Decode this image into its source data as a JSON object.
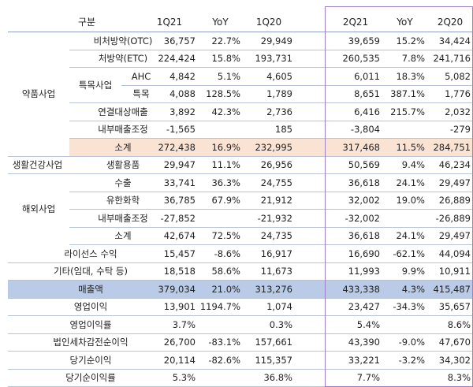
{
  "columns": [
    "구분",
    "1Q21",
    "YoY",
    "1Q20",
    "2Q21",
    "YoY",
    "2Q20"
  ],
  "groups": {
    "pharma": "약품사업",
    "special": "특목사업",
    "consumer": "생활건강사업",
    "overseas": "해외사업"
  },
  "rows": [
    {
      "label": "비처방약(OTC)",
      "v": [
        "36,757",
        "22.7%",
        "29,949",
        "39,659",
        "15.2%",
        "34,424"
      ]
    },
    {
      "label": "처방약(ETC)",
      "v": [
        "224,424",
        "15.8%",
        "193,731",
        "260,535",
        "7.8%",
        "241,716"
      ]
    },
    {
      "label": "AHC",
      "v": [
        "4,842",
        "5.1%",
        "4,605",
        "6,011",
        "18.3%",
        "5,082"
      ]
    },
    {
      "label": "특목",
      "v": [
        "4,088",
        "128.5%",
        "1,789",
        "8,651",
        "387.1%",
        "1,776"
      ]
    },
    {
      "label": "연결대상매출",
      "v": [
        "3,892",
        "42.3%",
        "2,736",
        "6,416",
        "215.7%",
        "2,032"
      ]
    },
    {
      "label": "내부매출조정",
      "v": [
        "-1,565",
        "",
        "185",
        "-3,804",
        "",
        "-279"
      ]
    },
    {
      "label": "소계",
      "v": [
        "272,438",
        "16.9%",
        "232,995",
        "317,468",
        "11.5%",
        "284,751"
      ]
    },
    {
      "label": "생활용품",
      "v": [
        "29,947",
        "11.1%",
        "26,956",
        "50,569",
        "9.4%",
        "46,234"
      ]
    },
    {
      "label": "수출",
      "v": [
        "33,741",
        "36.3%",
        "24,755",
        "36,618",
        "24.1%",
        "29,497"
      ]
    },
    {
      "label": "유한화학",
      "v": [
        "36,785",
        "67.9%",
        "21,912",
        "32,002",
        "19.0%",
        "26,889"
      ]
    },
    {
      "label": "내부매출조정",
      "v": [
        "-27,852",
        "",
        "-21,932",
        "-32,002",
        "",
        "-26,889"
      ]
    },
    {
      "label": "소계",
      "v": [
        "42,674",
        "72.5%",
        "24,735",
        "36,618",
        "24.1%",
        "29,497"
      ]
    },
    {
      "label": "라이선스 수익",
      "v": [
        "15,457",
        "-8.6%",
        "16,917",
        "16,690",
        "-62.1%",
        "44,094"
      ]
    },
    {
      "label": "기타(임대, 수탁 등)",
      "v": [
        "18,518",
        "58.6%",
        "11,673",
        "11,993",
        "9.9%",
        "10,911"
      ]
    },
    {
      "label": "매출액",
      "v": [
        "379,034",
        "21.0%",
        "313,276",
        "433,338",
        "4.3%",
        "415,487"
      ]
    },
    {
      "label": "영업이익",
      "v": [
        "13,901",
        "1194.7%",
        "1,074",
        "23,427",
        "-34.3%",
        "35,657"
      ]
    },
    {
      "label": "영업이익률",
      "v": [
        "3.7%",
        "",
        "0.3%",
        "5.4%",
        "",
        "8.6%"
      ]
    },
    {
      "label": "법인세차감전순이익",
      "v": [
        "26,700",
        "-83.1%",
        "157,661",
        "43,390",
        "-9.0%",
        "47,670"
      ]
    },
    {
      "label": "당기순이익",
      "v": [
        "20,114",
        "-82.6%",
        "115,357",
        "33,221",
        "-3.2%",
        "34,302"
      ]
    },
    {
      "label": "당기순이익률",
      "v": [
        "5.3%",
        "",
        "36.8%",
        "7.7%",
        "",
        "8.3%"
      ]
    }
  ],
  "colors": {
    "subtotal_bg": "#fbe3d3",
    "total_bg": "#b9cbe6",
    "highlight_box": "#9e7fc4",
    "grid": "#b9c3d6"
  }
}
